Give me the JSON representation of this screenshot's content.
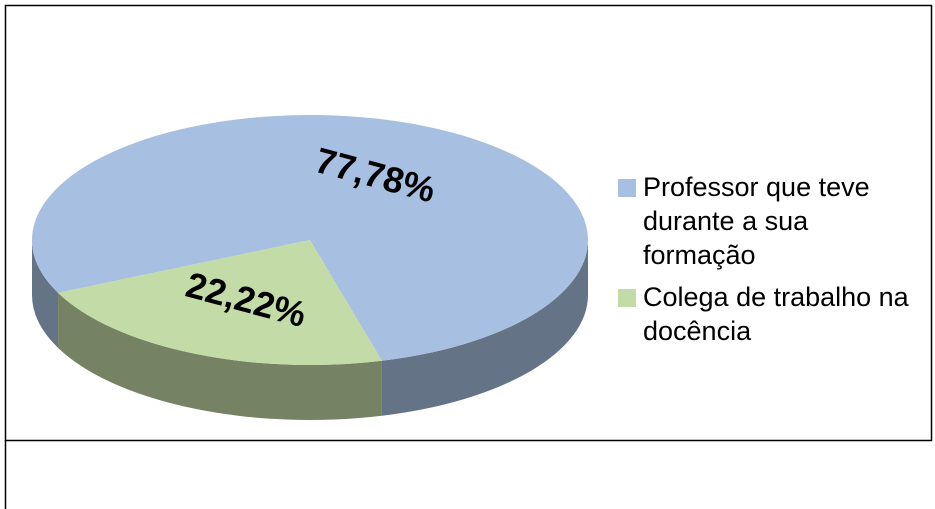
{
  "chart_data": {
    "type": "pie",
    "categories": [
      "Professor que teve durante a sua formação",
      "Colega de trabalho na docência"
    ],
    "values": [
      77.78,
      22.22
    ],
    "value_labels": [
      "77,78%",
      "22,22%"
    ],
    "colors": [
      "#a7bfe0",
      "#c3dba6"
    ],
    "legend": "right"
  }
}
